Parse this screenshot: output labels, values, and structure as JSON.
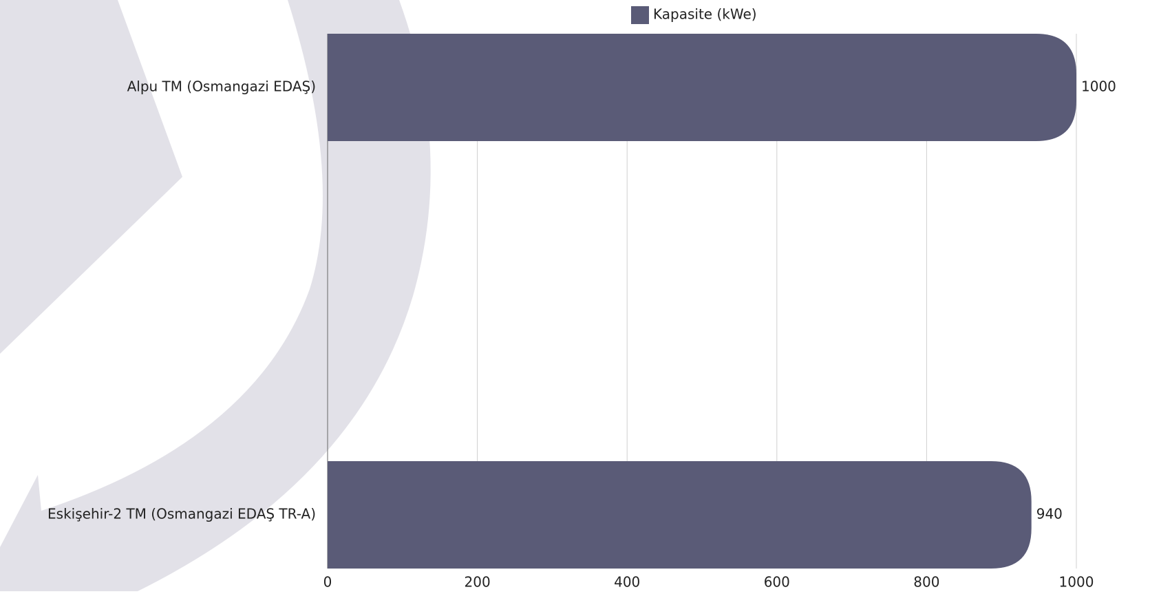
{
  "chart_data": {
    "type": "bar",
    "orientation": "horizontal",
    "categories": [
      "Alpu TM (Osmangazi EDAŞ)",
      "Eskişehir-2 TM (Osmangazi EDAŞ TR-A)"
    ],
    "series": [
      {
        "name": "Kapasite (kWe)",
        "color": "#5a5b77",
        "values": [
          1000,
          940
        ]
      }
    ],
    "xlim": [
      0,
      1000
    ],
    "xticks": [
      0,
      200,
      400,
      600,
      800,
      1000
    ],
    "grid": true,
    "legend": "top"
  }
}
